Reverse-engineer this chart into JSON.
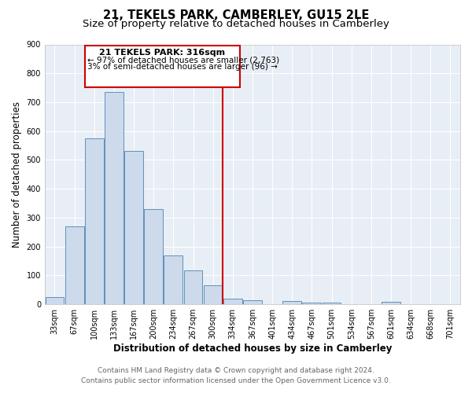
{
  "title": "21, TEKELS PARK, CAMBERLEY, GU15 2LE",
  "subtitle": "Size of property relative to detached houses in Camberley",
  "xlabel": "Distribution of detached houses by size in Camberley",
  "ylabel": "Number of detached properties",
  "bar_labels": [
    "33sqm",
    "67sqm",
    "100sqm",
    "133sqm",
    "167sqm",
    "200sqm",
    "234sqm",
    "267sqm",
    "300sqm",
    "334sqm",
    "367sqm",
    "401sqm",
    "434sqm",
    "467sqm",
    "501sqm",
    "534sqm",
    "567sqm",
    "601sqm",
    "634sqm",
    "668sqm",
    "701sqm"
  ],
  "bar_values": [
    25,
    270,
    575,
    735,
    530,
    330,
    170,
    117,
    65,
    20,
    13,
    0,
    12,
    7,
    7,
    0,
    0,
    8,
    0,
    0,
    0
  ],
  "bar_color": "#ccdaeb",
  "bar_edge_color": "#6090bb",
  "ylim": [
    0,
    900
  ],
  "yticks": [
    0,
    100,
    200,
    300,
    400,
    500,
    600,
    700,
    800,
    900
  ],
  "vline_x": 8.5,
  "vline_color": "#cc0000",
  "annotation_title": "21 TEKELS PARK: 316sqm",
  "annotation_line1": "← 97% of detached houses are smaller (2,763)",
  "annotation_line2": "3% of semi-detached houses are larger (96) →",
  "annotation_box_color": "#cc0000",
  "footer_line1": "Contains HM Land Registry data © Crown copyright and database right 2024.",
  "footer_line2": "Contains public sector information licensed under the Open Government Licence v3.0.",
  "background_color": "#e8eef5",
  "grid_color": "#ffffff",
  "fig_bg_color": "#ffffff",
  "title_fontsize": 10.5,
  "subtitle_fontsize": 9.5,
  "axis_label_fontsize": 8.5,
  "tick_fontsize": 7,
  "footer_fontsize": 6.5,
  "ann_title_fontsize": 8,
  "ann_text_fontsize": 7.5
}
